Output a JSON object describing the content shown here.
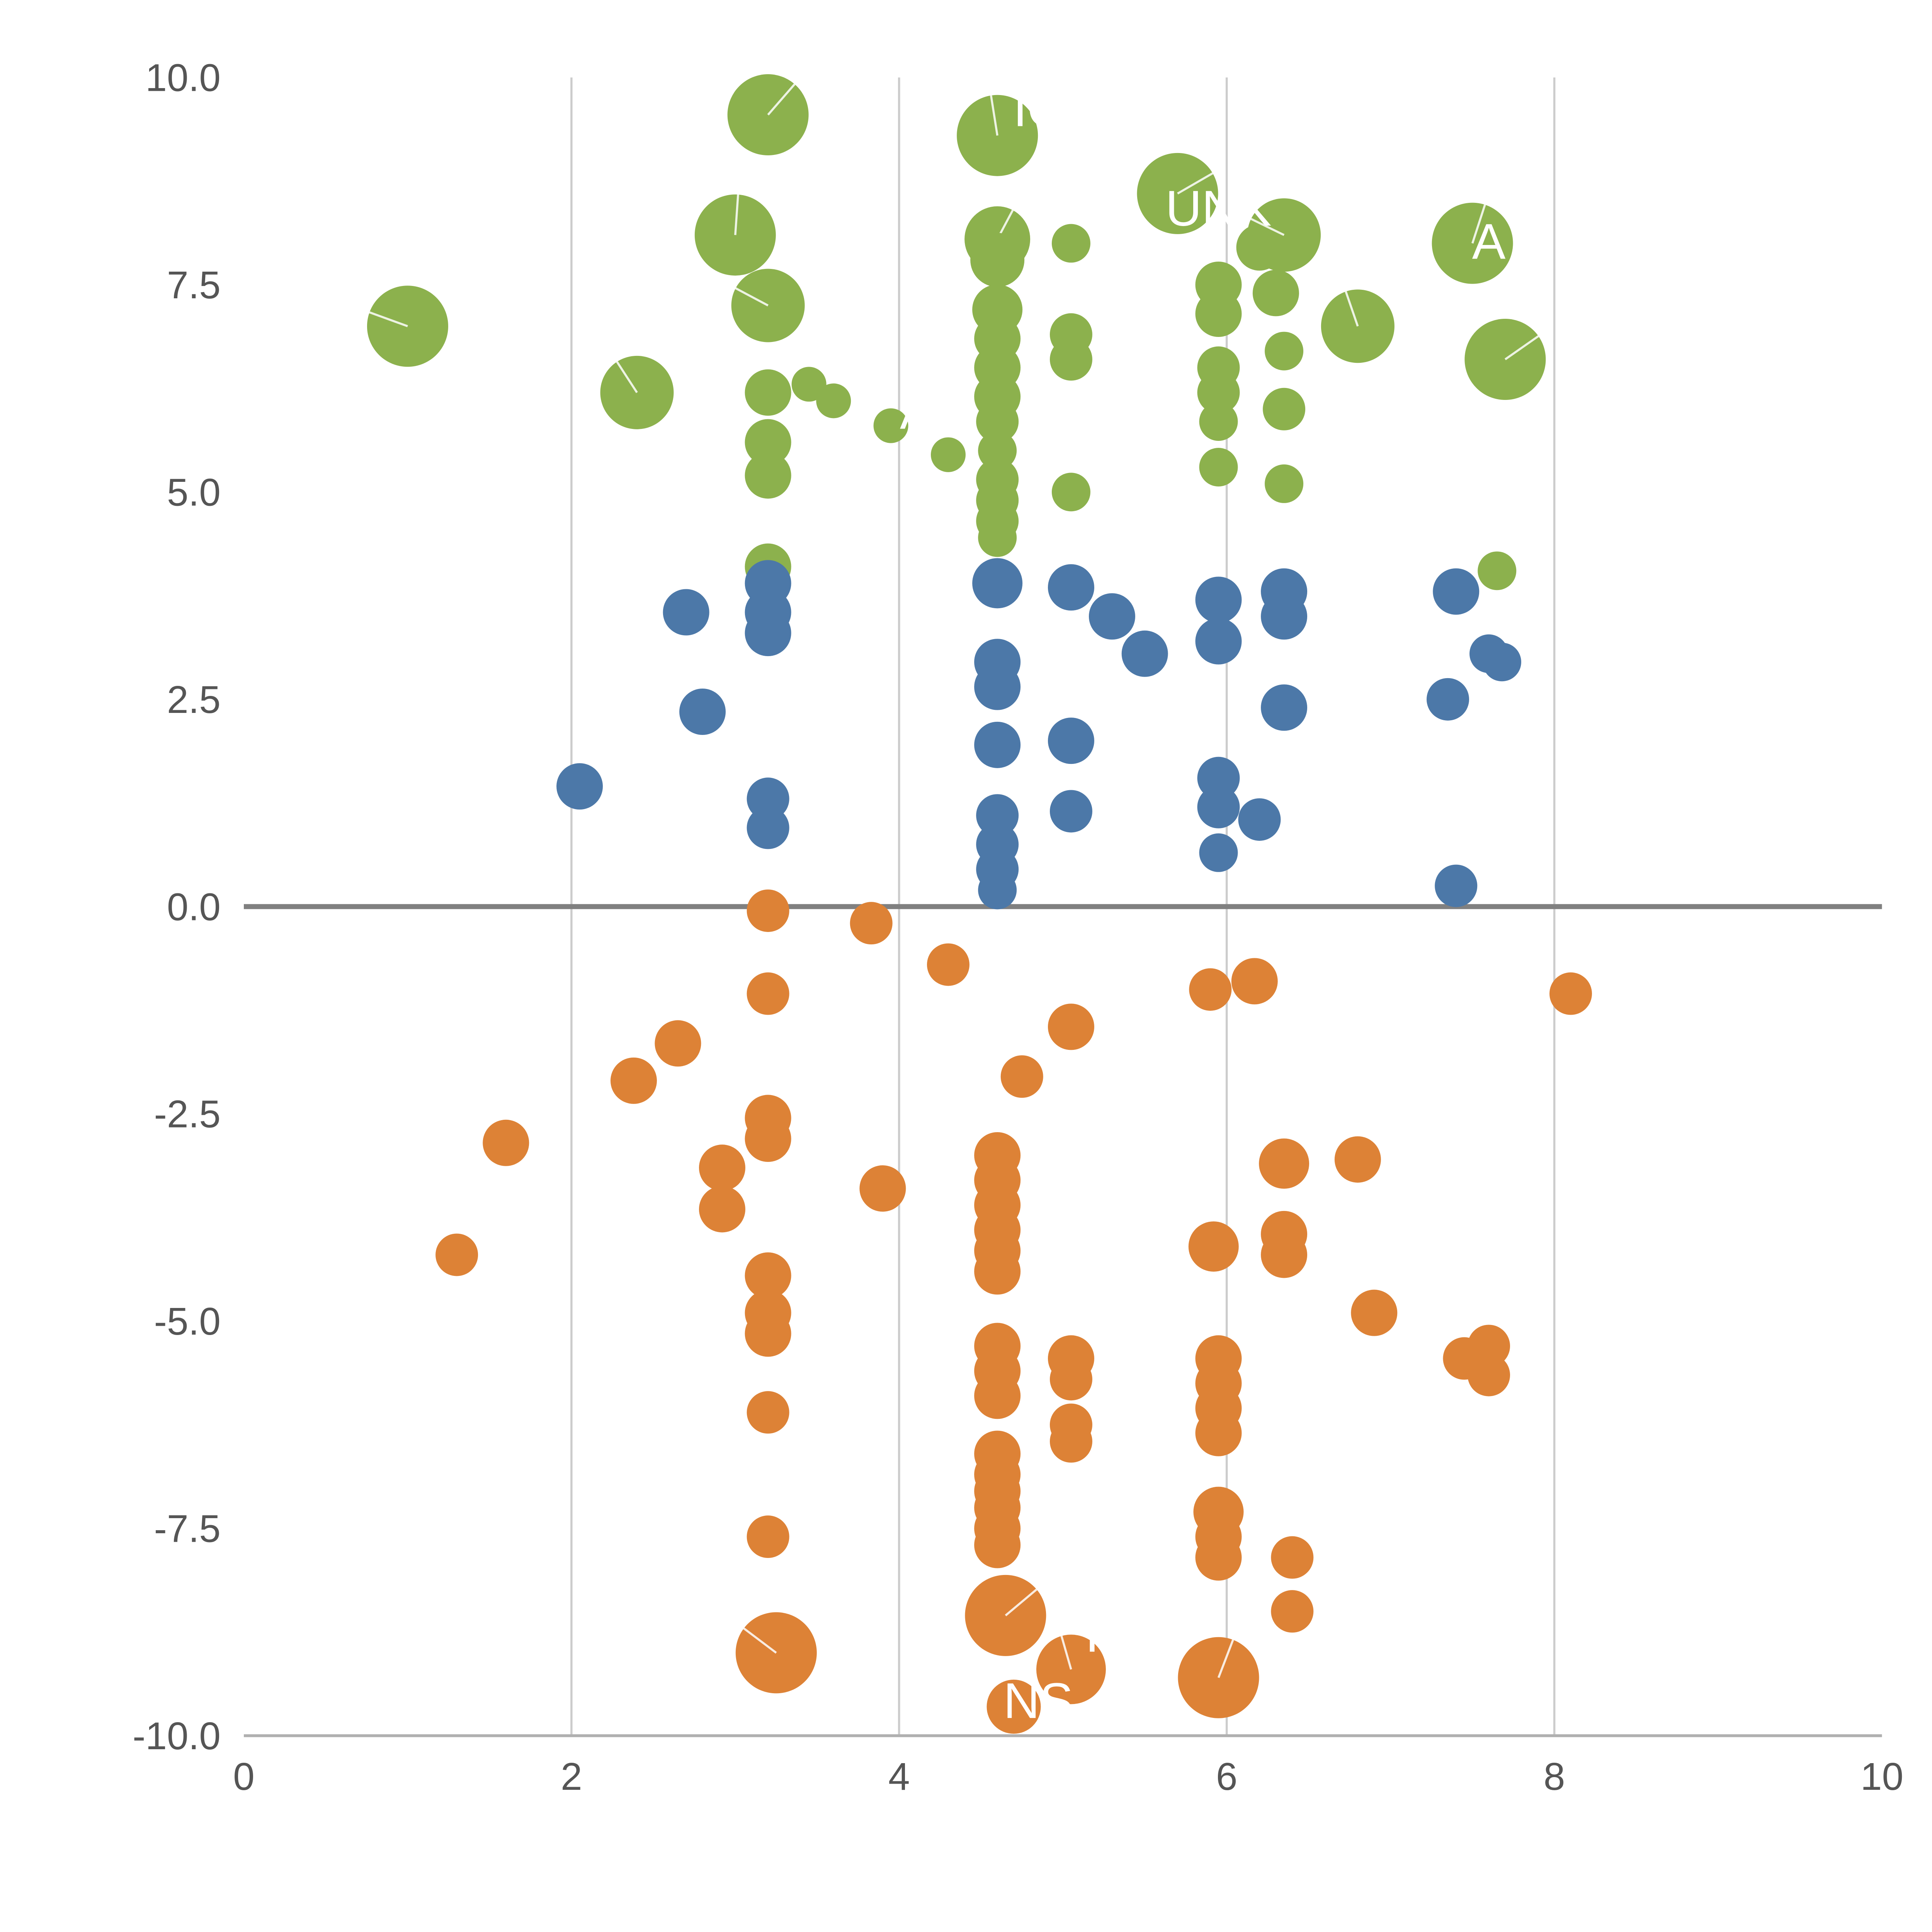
{
  "chart_data": {
    "type": "scatter",
    "title": "",
    "xlabel": "",
    "ylabel": "",
    "xlim": [
      0,
      10
    ],
    "ylim": [
      -10,
      10
    ],
    "grid": "vertical-only",
    "grid_x": [
      2,
      4,
      6,
      8
    ],
    "zero_line": true,
    "legend": "none",
    "x_ticks": [
      {
        "v": 0,
        "label": "0"
      },
      {
        "v": 2,
        "label": "2"
      },
      {
        "v": 4,
        "label": "4"
      },
      {
        "v": 6,
        "label": "6"
      },
      {
        "v": 8,
        "label": "8"
      },
      {
        "v": 10,
        "label": "10"
      }
    ],
    "y_ticks": [
      {
        "v": 10,
        "label": "10.0"
      },
      {
        "v": 7.5,
        "label": "7.5"
      },
      {
        "v": 5,
        "label": "5.0"
      },
      {
        "v": 2.5,
        "label": "2.5"
      },
      {
        "v": 0,
        "label": "0.0"
      },
      {
        "v": -2.5,
        "label": "-2.5"
      },
      {
        "v": -5,
        "label": "-5.0"
      },
      {
        "v": -7.5,
        "label": "-7.5"
      },
      {
        "v": -10,
        "label": "-10.0"
      }
    ],
    "colors": {
      "green": "#8cb14d",
      "blue": "#4c78a8",
      "orange": "#dd8236",
      "grid": "#cccccc",
      "axis": "#b0b0b0",
      "zero_line": "#808080",
      "tick_text": "#555555",
      "annotation_text": "#ffffff"
    },
    "series": [
      {
        "name": "green",
        "color": "#8cb14d",
        "points": [
          [
            1.0,
            7.0,
            21
          ],
          [
            2.4,
            6.2,
            19
          ],
          [
            3.0,
            8.1,
            21
          ],
          [
            3.2,
            9.55,
            21
          ],
          [
            3.2,
            7.25,
            19
          ],
          [
            3.2,
            6.2,
            12
          ],
          [
            3.2,
            5.6,
            12
          ],
          [
            3.2,
            5.2,
            12
          ],
          [
            3.2,
            4.1,
            12
          ],
          [
            3.45,
            6.3,
            9
          ],
          [
            3.6,
            6.1,
            9
          ],
          [
            3.95,
            5.8,
            9
          ],
          [
            4.3,
            5.45,
            9
          ],
          [
            4.6,
            9.3,
            21
          ],
          [
            4.6,
            8.05,
            17
          ],
          [
            4.6,
            7.8,
            14
          ],
          [
            4.6,
            7.2,
            13
          ],
          [
            4.6,
            6.85,
            12
          ],
          [
            4.6,
            6.5,
            12
          ],
          [
            4.6,
            6.15,
            12
          ],
          [
            4.6,
            5.85,
            11
          ],
          [
            4.6,
            5.5,
            10
          ],
          [
            4.6,
            5.15,
            11
          ],
          [
            4.6,
            4.9,
            11
          ],
          [
            4.6,
            4.65,
            11
          ],
          [
            4.6,
            4.45,
            10
          ],
          [
            5.05,
            8.0,
            10
          ],
          [
            5.05,
            6.9,
            11
          ],
          [
            5.05,
            6.6,
            11
          ],
          [
            5.05,
            5.0,
            10
          ],
          [
            5.7,
            8.6,
            21
          ],
          [
            5.95,
            7.5,
            12
          ],
          [
            5.95,
            7.15,
            12
          ],
          [
            5.95,
            6.5,
            11
          ],
          [
            5.95,
            6.2,
            11
          ],
          [
            5.95,
            5.85,
            10
          ],
          [
            5.95,
            5.3,
            10
          ],
          [
            6.2,
            7.95,
            12
          ],
          [
            6.35,
            8.1,
            19
          ],
          [
            6.3,
            7.4,
            12
          ],
          [
            6.35,
            6.7,
            10
          ],
          [
            6.35,
            6.0,
            11
          ],
          [
            6.35,
            5.1,
            10
          ],
          [
            6.8,
            7.0,
            19
          ],
          [
            7.5,
            8.0,
            21
          ],
          [
            7.7,
            6.6,
            21
          ],
          [
            7.65,
            4.05,
            10
          ]
        ]
      },
      {
        "name": "blue",
        "color": "#4c78a8",
        "points": [
          [
            2.05,
            1.45,
            12
          ],
          [
            2.7,
            3.55,
            12
          ],
          [
            2.8,
            2.35,
            12
          ],
          [
            3.2,
            3.9,
            12
          ],
          [
            3.2,
            3.55,
            12
          ],
          [
            3.2,
            3.3,
            12
          ],
          [
            3.2,
            1.3,
            11
          ],
          [
            3.2,
            0.95,
            11
          ],
          [
            4.6,
            3.9,
            13
          ],
          [
            4.6,
            2.95,
            12
          ],
          [
            4.6,
            2.65,
            12
          ],
          [
            4.6,
            1.95,
            12
          ],
          [
            4.6,
            1.1,
            11
          ],
          [
            4.6,
            0.75,
            11
          ],
          [
            4.6,
            0.45,
            11
          ],
          [
            4.6,
            0.2,
            10
          ],
          [
            5.05,
            3.85,
            12
          ],
          [
            5.05,
            2.0,
            12
          ],
          [
            5.05,
            1.15,
            11
          ],
          [
            5.3,
            3.5,
            12
          ],
          [
            5.5,
            3.05,
            12
          ],
          [
            5.95,
            3.7,
            12
          ],
          [
            5.95,
            3.2,
            12
          ],
          [
            5.95,
            1.55,
            11
          ],
          [
            5.95,
            1.2,
            11
          ],
          [
            5.95,
            0.65,
            10
          ],
          [
            6.2,
            1.05,
            11
          ],
          [
            6.35,
            3.8,
            12
          ],
          [
            6.35,
            3.5,
            12
          ],
          [
            6.35,
            2.4,
            12
          ],
          [
            7.4,
            3.8,
            12
          ],
          [
            7.35,
            2.5,
            11
          ],
          [
            7.6,
            3.05,
            10
          ],
          [
            7.68,
            2.95,
            10
          ],
          [
            7.4,
            0.25,
            11
          ]
        ]
      },
      {
        "name": "orange",
        "color": "#dd8236",
        "points": [
          [
            3.2,
            -0.05,
            11
          ],
          [
            3.83,
            -0.2,
            11
          ],
          [
            4.3,
            -0.7,
            11
          ],
          [
            3.2,
            -1.05,
            11
          ],
          [
            5.9,
            -1.0,
            11
          ],
          [
            6.17,
            -0.9,
            12
          ],
          [
            8.1,
            -1.05,
            11
          ],
          [
            2.65,
            -1.65,
            12
          ],
          [
            5.05,
            -1.45,
            12
          ],
          [
            2.38,
            -2.1,
            12
          ],
          [
            4.75,
            -2.05,
            11
          ],
          [
            3.2,
            -2.55,
            12
          ],
          [
            3.2,
            -2.8,
            12
          ],
          [
            1.6,
            -2.85,
            12
          ],
          [
            2.92,
            -3.15,
            12
          ],
          [
            6.35,
            -3.1,
            13
          ],
          [
            6.8,
            -3.05,
            12
          ],
          [
            3.9,
            -3.4,
            12
          ],
          [
            2.92,
            -3.65,
            12
          ],
          [
            4.6,
            -3.0,
            12
          ],
          [
            4.6,
            -3.3,
            12
          ],
          [
            4.6,
            -3.6,
            12
          ],
          [
            4.6,
            -3.9,
            12
          ],
          [
            4.6,
            -4.15,
            12
          ],
          [
            4.6,
            -4.4,
            12
          ],
          [
            1.3,
            -4.2,
            11
          ],
          [
            5.92,
            -4.1,
            13
          ],
          [
            6.35,
            -3.95,
            12
          ],
          [
            6.35,
            -4.2,
            12
          ],
          [
            3.2,
            -4.45,
            12
          ],
          [
            3.2,
            -4.9,
            12
          ],
          [
            3.2,
            -5.15,
            12
          ],
          [
            6.9,
            -4.9,
            12
          ],
          [
            7.45,
            -5.45,
            11
          ],
          [
            7.6,
            -5.3,
            11
          ],
          [
            7.6,
            -5.65,
            11
          ],
          [
            4.6,
            -5.3,
            12
          ],
          [
            4.6,
            -5.6,
            12
          ],
          [
            4.6,
            -5.9,
            12
          ],
          [
            5.05,
            -5.45,
            12
          ],
          [
            5.05,
            -5.7,
            11
          ],
          [
            5.05,
            -6.25,
            11
          ],
          [
            5.05,
            -6.45,
            11
          ],
          [
            5.95,
            -5.45,
            12
          ],
          [
            5.95,
            -5.75,
            12
          ],
          [
            5.95,
            -6.05,
            12
          ],
          [
            5.95,
            -6.35,
            12
          ],
          [
            3.2,
            -6.1,
            11
          ],
          [
            4.6,
            -6.6,
            12
          ],
          [
            4.6,
            -6.85,
            12
          ],
          [
            4.6,
            -7.05,
            12
          ],
          [
            4.6,
            -7.25,
            12
          ],
          [
            4.6,
            -7.5,
            12
          ],
          [
            4.6,
            -7.7,
            12
          ],
          [
            3.2,
            -7.6,
            11
          ],
          [
            5.95,
            -7.3,
            13
          ],
          [
            5.95,
            -7.6,
            12
          ],
          [
            5.95,
            -7.85,
            12
          ],
          [
            6.4,
            -7.85,
            11
          ],
          [
            6.4,
            -8.5,
            11
          ],
          [
            4.65,
            -8.55,
            21
          ],
          [
            3.25,
            -9.0,
            21
          ],
          [
            5.05,
            -9.2,
            18
          ],
          [
            5.95,
            -9.3,
            21
          ],
          [
            4.7,
            -9.65,
            14
          ]
        ]
      }
    ],
    "annotations": [
      {
        "text": "IC",
        "x": 4.85,
        "y": 9.6
      },
      {
        "text": "UNK",
        "x": 5.95,
        "y": 8.4
      },
      {
        "text": "A",
        "x": 7.6,
        "y": 8.0
      },
      {
        "text": "A,",
        "x": 4.15,
        "y": 5.95
      },
      {
        "text": "R",
        "x": 5.25,
        "y": -8.8
      },
      {
        "text": "NS",
        "x": 4.85,
        "y": -9.6
      }
    ]
  }
}
